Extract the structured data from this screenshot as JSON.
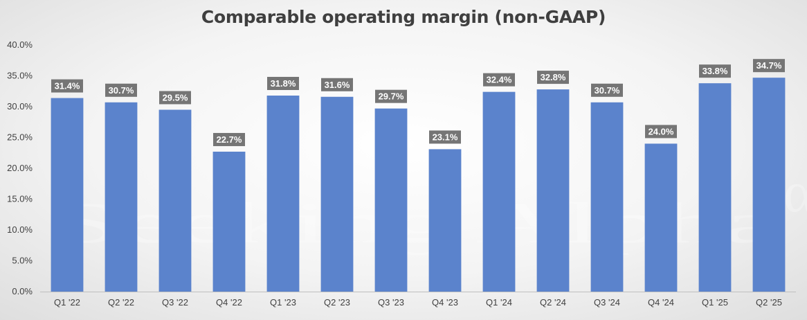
{
  "chart_data": {
    "type": "bar",
    "title": "Comparable operating margin (non-GAAP)",
    "categories": [
      "Q1 '22",
      "Q2 '22",
      "Q3 '22",
      "Q4 '22",
      "Q1 '23",
      "Q2 '23",
      "Q3 '23",
      "Q4 '23",
      "Q1 '24",
      "Q2 '24",
      "Q3 '24",
      "Q4 '24",
      "Q1 '25",
      "Q2 '25"
    ],
    "values": [
      31.4,
      30.7,
      29.5,
      22.7,
      31.8,
      31.6,
      29.7,
      23.1,
      32.4,
      32.8,
      30.7,
      24.0,
      33.8,
      34.7
    ],
    "value_labels": [
      "31.4%",
      "30.7%",
      "29.5%",
      "22.7%",
      "31.8%",
      "31.6%",
      "29.7%",
      "23.1%",
      "32.4%",
      "32.8%",
      "30.7%",
      "24.0%",
      "33.8%",
      "34.7%"
    ],
    "y_ticks": [
      "0.0%",
      "5.0%",
      "10.0%",
      "15.0%",
      "20.0%",
      "25.0%",
      "30.0%",
      "35.0%",
      "40.0%"
    ],
    "ylim": [
      0,
      40
    ],
    "xlabel": "",
    "ylabel": "",
    "grid": false,
    "legend": "none",
    "colors": {
      "bar": "#5b83cc",
      "label_box": "#757575",
      "label_text": "#ffffff",
      "axis_text": "#404040"
    }
  },
  "watermark": {
    "text": "Seeking Alpha",
    "symbol": "α"
  }
}
